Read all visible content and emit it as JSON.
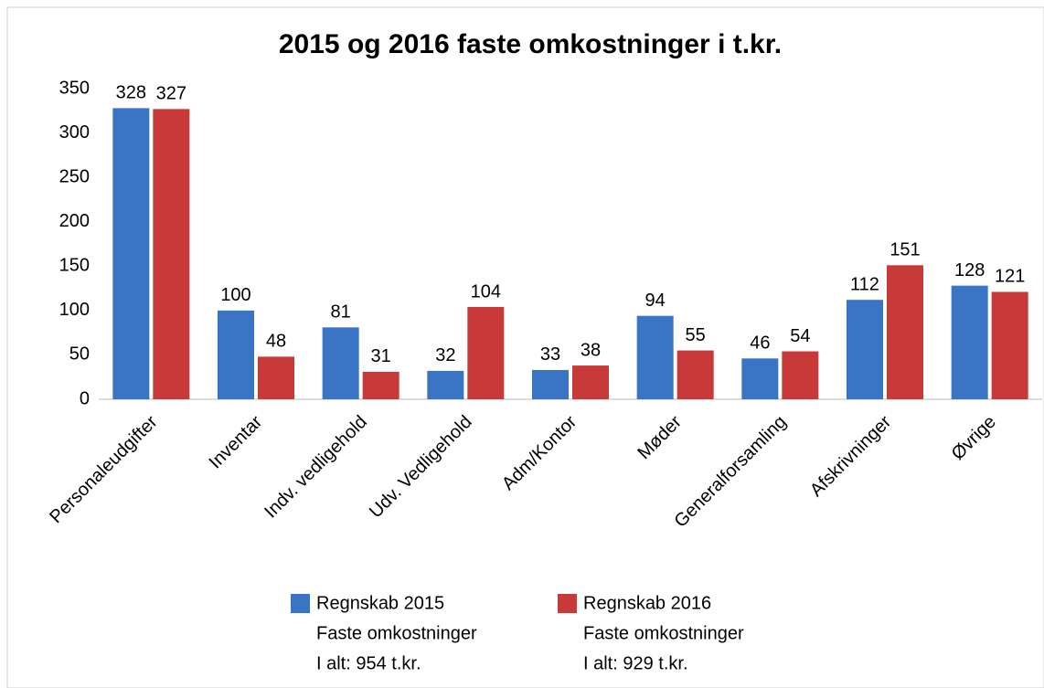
{
  "chart_data": {
    "type": "bar",
    "title": "2015 og 2016 faste omkostninger i t.kr.",
    "categories": [
      "Personaleudgifter",
      "Inventar",
      "Indv. vedligehold",
      "Udv. Vedligehold",
      "Adm/Kontor",
      "Møder",
      "Generalforsamling",
      "Afskrivninger",
      "Øvrige"
    ],
    "series": [
      {
        "name": "Regnskab 2015",
        "color": "#3a74c4",
        "values": [
          328,
          100,
          81,
          32,
          33,
          94,
          46,
          112,
          128
        ],
        "legend_notes": [
          "Faste omkostninger",
          "I alt: 954 t.kr."
        ]
      },
      {
        "name": "Regnskab 2016",
        "color": "#c83a3a",
        "values": [
          327,
          48,
          31,
          104,
          38,
          55,
          54,
          151,
          121
        ],
        "legend_notes": [
          "Faste omkostninger",
          "I alt: 929 t.kr."
        ]
      }
    ],
    "ylim": [
      0,
      350
    ],
    "yticks": [
      0,
      50,
      100,
      150,
      200,
      250,
      300,
      350
    ],
    "grid": false,
    "legend": "bottom"
  }
}
